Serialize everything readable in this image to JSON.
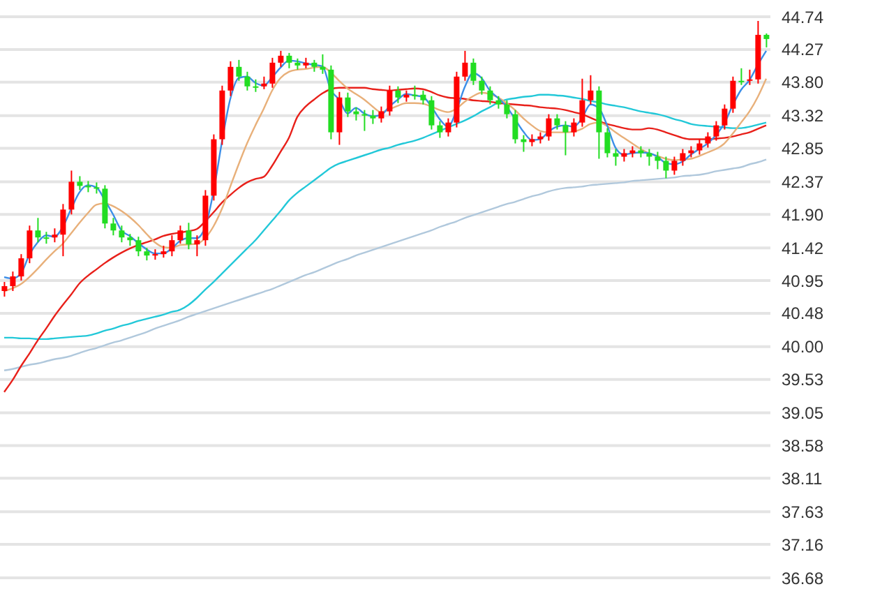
{
  "chart_data": {
    "type": "candlestick",
    "categories": [
      null,
      null,
      null,
      null,
      null,
      null,
      null,
      null,
      null,
      null,
      null,
      null,
      null,
      null,
      null,
      null,
      null,
      null,
      null,
      null,
      null,
      null,
      null,
      null,
      null,
      null,
      null,
      null,
      null,
      null,
      null,
      null,
      null,
      null,
      null,
      null,
      null,
      null,
      null,
      null,
      null,
      null,
      null,
      null,
      null,
      null,
      null,
      null,
      null,
      null,
      null,
      null,
      null,
      null,
      null,
      null,
      null,
      null,
      null,
      null,
      null,
      null,
      null,
      null,
      null,
      null,
      null,
      null,
      null,
      null,
      null,
      null,
      null,
      null,
      null,
      null,
      null,
      null,
      null,
      null,
      null,
      null,
      null,
      null,
      null,
      null,
      null,
      null,
      null,
      null,
      null,
      null
    ],
    "ohlc": [
      [
        40.8,
        40.93,
        40.72,
        40.87
      ],
      [
        40.87,
        41.08,
        40.8,
        41.01
      ],
      [
        41.01,
        41.33,
        40.95,
        41.27
      ],
      [
        41.27,
        41.74,
        41.2,
        41.67
      ],
      [
        41.67,
        41.85,
        41.5,
        41.57
      ],
      [
        41.57,
        41.65,
        41.48,
        41.57
      ],
      [
        41.57,
        41.7,
        41.5,
        41.61
      ],
      [
        41.61,
        42.05,
        41.3,
        41.97
      ],
      [
        41.97,
        42.53,
        41.9,
        42.37
      ],
      [
        42.37,
        42.45,
        42.25,
        42.31
      ],
      [
        42.31,
        42.38,
        42.22,
        42.29
      ],
      [
        42.29,
        42.36,
        42.2,
        42.27
      ],
      [
        42.27,
        42.32,
        41.7,
        41.77
      ],
      [
        41.77,
        41.85,
        41.6,
        41.67
      ],
      [
        41.67,
        41.74,
        41.5,
        41.57
      ],
      [
        41.57,
        41.62,
        41.45,
        41.53
      ],
      [
        41.53,
        41.58,
        41.3,
        41.37
      ],
      [
        41.37,
        41.42,
        41.24,
        41.31
      ],
      [
        41.31,
        41.4,
        41.25,
        41.33
      ],
      [
        41.33,
        41.45,
        41.28,
        41.37
      ],
      [
        41.37,
        41.6,
        41.3,
        41.53
      ],
      [
        41.53,
        41.74,
        41.48,
        41.67
      ],
      [
        41.67,
        41.78,
        41.4,
        41.47
      ],
      [
        41.47,
        41.6,
        41.3,
        41.53
      ],
      [
        41.53,
        42.25,
        41.45,
        42.17
      ],
      [
        42.17,
        43.05,
        42.1,
        42.98
      ],
      [
        42.98,
        43.75,
        42.9,
        43.68
      ],
      [
        43.68,
        44.1,
        43.6,
        44.02
      ],
      [
        44.02,
        44.12,
        43.82,
        43.88
      ],
      [
        43.88,
        43.95,
        43.68,
        43.74
      ],
      [
        43.74,
        43.84,
        43.66,
        43.74
      ],
      [
        43.74,
        43.88,
        43.7,
        43.78
      ],
      [
        43.78,
        44.15,
        43.72,
        44.08
      ],
      [
        44.08,
        44.25,
        44.02,
        44.18
      ],
      [
        44.18,
        44.22,
        44.0,
        44.08
      ],
      [
        44.08,
        44.14,
        43.98,
        44.04
      ],
      [
        44.04,
        44.15,
        44.0,
        44.08
      ],
      [
        44.08,
        44.12,
        43.95,
        44.02
      ],
      [
        44.02,
        44.2,
        43.92,
        43.98
      ],
      [
        43.98,
        44.04,
        42.98,
        43.08
      ],
      [
        43.08,
        43.66,
        42.9,
        43.58
      ],
      [
        43.58,
        43.65,
        43.3,
        43.38
      ],
      [
        43.38,
        43.44,
        43.25,
        43.34
      ],
      [
        43.34,
        43.4,
        43.1,
        43.32
      ],
      [
        43.32,
        43.4,
        43.2,
        43.28
      ],
      [
        43.28,
        43.45,
        43.22,
        43.38
      ],
      [
        43.38,
        43.75,
        43.32,
        43.68
      ],
      [
        43.68,
        43.74,
        43.5,
        43.58
      ],
      [
        43.58,
        43.68,
        43.52,
        43.62
      ],
      [
        43.62,
        43.75,
        43.55,
        43.62
      ],
      [
        43.62,
        43.68,
        43.48,
        43.54
      ],
      [
        43.54,
        43.6,
        43.12,
        43.18
      ],
      [
        43.18,
        43.24,
        43.0,
        43.08
      ],
      [
        43.08,
        43.28,
        43.02,
        43.22
      ],
      [
        43.22,
        43.95,
        43.15,
        43.88
      ],
      [
        43.88,
        44.25,
        43.82,
        44.08
      ],
      [
        44.08,
        44.14,
        43.76,
        43.82
      ],
      [
        43.82,
        43.88,
        43.62,
        43.68
      ],
      [
        43.68,
        43.74,
        43.48,
        43.54
      ],
      [
        43.54,
        43.6,
        43.42,
        43.48
      ],
      [
        43.48,
        43.54,
        43.28,
        43.34
      ],
      [
        43.34,
        43.4,
        42.92,
        42.98
      ],
      [
        42.98,
        43.04,
        42.8,
        42.94
      ],
      [
        42.94,
        43.05,
        42.88,
        42.98
      ],
      [
        42.98,
        43.08,
        42.92,
        43.02
      ],
      [
        43.02,
        43.34,
        42.96,
        43.28
      ],
      [
        43.28,
        43.34,
        43.12,
        43.18
      ],
      [
        43.18,
        43.24,
        42.75,
        43.08
      ],
      [
        43.08,
        43.28,
        43.02,
        43.22
      ],
      [
        43.22,
        43.85,
        43.16,
        43.54
      ],
      [
        43.54,
        43.9,
        43.48,
        43.68
      ],
      [
        43.68,
        43.74,
        42.7,
        43.08
      ],
      [
        43.08,
        43.14,
        42.72,
        42.78
      ],
      [
        42.78,
        42.84,
        42.6,
        42.73
      ],
      [
        42.73,
        42.84,
        42.66,
        42.78
      ],
      [
        42.78,
        42.88,
        42.72,
        42.82
      ],
      [
        42.82,
        42.88,
        42.72,
        42.78
      ],
      [
        42.78,
        42.84,
        42.6,
        42.73
      ],
      [
        42.73,
        42.8,
        42.55,
        42.67
      ],
      [
        42.67,
        42.73,
        42.42,
        42.53
      ],
      [
        42.53,
        42.73,
        42.47,
        42.67
      ],
      [
        42.67,
        42.84,
        42.6,
        42.78
      ],
      [
        42.78,
        42.88,
        42.72,
        42.82
      ],
      [
        42.82,
        42.98,
        42.76,
        42.92
      ],
      [
        42.92,
        43.08,
        42.86,
        43.02
      ],
      [
        43.02,
        43.24,
        42.96,
        43.18
      ],
      [
        43.18,
        43.48,
        43.12,
        43.42
      ],
      [
        43.42,
        43.88,
        43.36,
        43.82
      ],
      [
        43.82,
        44.0,
        43.76,
        43.82
      ],
      [
        43.82,
        43.98,
        43.76,
        43.84
      ],
      [
        43.84,
        44.68,
        43.78,
        44.48
      ],
      [
        44.48,
        44.5,
        44.3,
        44.42
      ]
    ],
    "colors": [
      "#ff0000",
      "#ff0000",
      "#ff0000",
      "#ff0000",
      "#22dd22",
      "#22dd22",
      "#ff0000",
      "#ff0000",
      "#ff0000",
      "#22dd22",
      "#22dd22",
      "#22dd22",
      "#22dd22",
      "#22dd22",
      "#22dd22",
      "#22dd22",
      "#22dd22",
      "#22dd22",
      "#ff0000",
      "#ff0000",
      "#ff0000",
      "#ff0000",
      "#22dd22",
      "#ff0000",
      "#ff0000",
      "#ff0000",
      "#ff0000",
      "#ff0000",
      "#22dd22",
      "#22dd22",
      "#22dd22",
      "#ff0000",
      "#ff0000",
      "#ff0000",
      "#22dd22",
      "#22dd22",
      "#ff0000",
      "#22dd22",
      "#22dd22",
      "#22dd22",
      "#ff0000",
      "#22dd22",
      "#22dd22",
      "#22dd22",
      "#22dd22",
      "#ff0000",
      "#ff0000",
      "#22dd22",
      "#ff0000",
      "#22dd22",
      "#22dd22",
      "#22dd22",
      "#22dd22",
      "#ff0000",
      "#ff0000",
      "#ff0000",
      "#22dd22",
      "#22dd22",
      "#22dd22",
      "#22dd22",
      "#22dd22",
      "#22dd22",
      "#22dd22",
      "#ff0000",
      "#ff0000",
      "#ff0000",
      "#22dd22",
      "#22dd22",
      "#ff0000",
      "#ff0000",
      "#ff0000",
      "#22dd22",
      "#22dd22",
      "#22dd22",
      "#ff0000",
      "#ff0000",
      "#22dd22",
      "#22dd22",
      "#22dd22",
      "#22dd22",
      "#ff0000",
      "#ff0000",
      "#ff0000",
      "#ff0000",
      "#ff0000",
      "#ff0000",
      "#ff0000",
      "#ff0000",
      "#22dd22",
      "#ff0000",
      "#ff0000",
      "#22dd22"
    ],
    "series": [
      {
        "type": "line",
        "color": "#b0c8dc",
        "values": [
          39.66,
          39.68,
          39.71,
          39.74,
          39.76,
          39.79,
          39.82,
          39.84,
          39.87,
          39.91,
          39.95,
          39.98,
          40.02,
          40.06,
          40.09,
          40.13,
          40.17,
          40.21,
          40.26,
          40.3,
          40.34,
          40.38,
          40.43,
          40.47,
          40.51,
          40.55,
          40.59,
          40.63,
          40.67,
          40.71,
          40.75,
          40.79,
          40.83,
          40.88,
          40.93,
          40.98,
          41.03,
          41.07,
          41.12,
          41.17,
          41.22,
          41.26,
          41.31,
          41.35,
          41.39,
          41.43,
          41.47,
          41.51,
          41.55,
          41.59,
          41.63,
          41.67,
          41.72,
          41.76,
          41.8,
          41.85,
          41.89,
          41.93,
          41.97,
          42.01,
          42.05,
          42.08,
          42.12,
          42.16,
          42.19,
          42.23,
          42.26,
          42.28,
          42.29,
          42.3,
          42.32,
          42.33,
          42.34,
          42.35,
          42.36,
          42.38,
          42.39,
          42.4,
          42.41,
          42.42,
          42.43,
          42.45,
          42.46,
          42.47,
          42.49,
          42.52,
          42.54,
          42.56,
          42.58,
          42.62,
          42.65,
          42.69
        ]
      },
      {
        "type": "line",
        "color": "#22c8d8",
        "values": [
          40.13,
          40.13,
          40.12,
          40.12,
          40.11,
          40.11,
          40.12,
          40.13,
          40.14,
          40.15,
          40.16,
          40.19,
          40.23,
          40.26,
          40.3,
          40.33,
          40.37,
          40.4,
          40.43,
          40.46,
          40.5,
          40.53,
          40.6,
          40.7,
          40.82,
          40.93,
          41.05,
          41.17,
          41.29,
          41.41,
          41.53,
          41.67,
          41.81,
          41.95,
          42.1,
          42.21,
          42.3,
          42.39,
          42.48,
          42.57,
          42.63,
          42.67,
          42.71,
          42.75,
          42.79,
          42.83,
          42.86,
          42.9,
          42.93,
          42.96,
          43.0,
          43.05,
          43.1,
          43.15,
          43.2,
          43.25,
          43.31,
          43.38,
          43.44,
          43.51,
          43.55,
          43.57,
          43.59,
          43.6,
          43.62,
          43.62,
          43.61,
          43.6,
          43.58,
          43.56,
          43.53,
          43.51,
          43.48,
          43.46,
          43.44,
          43.41,
          43.38,
          43.36,
          43.34,
          43.31,
          43.27,
          43.24,
          43.2,
          43.18,
          43.17,
          43.16,
          43.15,
          43.14,
          43.14,
          43.16,
          43.19,
          43.22
        ]
      },
      {
        "type": "line",
        "color": "#e8201a",
        "values": [
          39.35,
          39.52,
          39.72,
          39.9,
          40.09,
          40.26,
          40.44,
          40.6,
          40.75,
          40.91,
          41.02,
          41.11,
          41.2,
          41.28,
          41.35,
          41.41,
          41.46,
          41.5,
          41.54,
          41.59,
          41.62,
          41.64,
          41.66,
          41.69,
          41.8,
          41.93,
          42.07,
          42.18,
          42.28,
          42.36,
          42.41,
          42.44,
          42.6,
          42.8,
          43.0,
          43.3,
          43.45,
          43.55,
          43.64,
          43.7,
          43.72,
          43.72,
          43.72,
          43.72,
          43.7,
          43.69,
          43.68,
          43.69,
          43.7,
          43.71,
          43.7,
          43.66,
          43.61,
          43.58,
          43.57,
          43.56,
          43.54,
          43.53,
          43.52,
          43.5,
          43.49,
          43.48,
          43.47,
          43.46,
          43.44,
          43.43,
          43.42,
          43.4,
          43.37,
          43.34,
          43.29,
          43.24,
          43.2,
          43.17,
          43.14,
          43.12,
          43.12,
          43.14,
          43.12,
          43.08,
          43.04,
          43.0,
          42.98,
          42.98,
          42.98,
          42.99,
          43.0,
          43.02,
          43.05,
          43.08,
          43.13,
          43.18
        ]
      },
      {
        "type": "line",
        "color": "#e8b07a",
        "values": [
          40.8,
          40.84,
          40.9,
          41.0,
          41.12,
          41.25,
          41.37,
          41.48,
          41.63,
          41.78,
          41.92,
          42.04,
          42.06,
          42.02,
          41.95,
          41.86,
          41.75,
          41.62,
          41.5,
          41.43,
          41.42,
          41.46,
          41.47,
          41.48,
          41.56,
          41.73,
          41.98,
          42.3,
          42.62,
          42.92,
          43.18,
          43.42,
          43.68,
          43.86,
          43.95,
          43.98,
          43.99,
          44.01,
          44.02,
          43.94,
          43.82,
          43.71,
          43.63,
          43.55,
          43.45,
          43.37,
          43.41,
          43.46,
          43.5,
          43.5,
          43.49,
          43.45,
          43.4,
          43.37,
          43.42,
          43.52,
          43.6,
          43.65,
          43.63,
          43.58,
          43.5,
          43.4,
          43.28,
          43.18,
          43.1,
          43.08,
          43.08,
          43.08,
          43.09,
          43.13,
          43.2,
          43.22,
          43.17,
          43.08,
          43.0,
          42.92,
          42.84,
          42.78,
          42.74,
          42.7,
          42.68,
          42.69,
          42.7,
          42.74,
          42.79,
          42.84,
          42.92,
          43.06,
          43.22,
          43.38,
          43.59,
          43.85
        ]
      },
      {
        "type": "line",
        "color": "#3b8ee8",
        "values": [
          41.0,
          40.98,
          41.05,
          41.32,
          41.5,
          41.6,
          41.58,
          41.72,
          41.98,
          42.22,
          42.32,
          42.29,
          42.11,
          41.9,
          41.67,
          41.59,
          41.49,
          41.4,
          41.34,
          41.34,
          41.41,
          41.52,
          41.56,
          41.56,
          41.72,
          42.23,
          42.94,
          43.56,
          43.86,
          43.88,
          43.79,
          43.75,
          43.87,
          44.01,
          44.11,
          44.1,
          44.07,
          44.05,
          44.03,
          43.69,
          43.55,
          43.35,
          43.43,
          43.35,
          43.31,
          43.33,
          43.45,
          43.55,
          43.63,
          43.61,
          43.59,
          43.45,
          43.27,
          43.16,
          43.39,
          43.73,
          43.93,
          43.86,
          43.68,
          43.57,
          43.45,
          43.27,
          43.09,
          42.97,
          42.98,
          43.09,
          43.16,
          43.18,
          43.16,
          43.28,
          43.48,
          43.43,
          43.18,
          42.86,
          42.76,
          42.78,
          42.79,
          42.78,
          42.73,
          42.64,
          42.62,
          42.66,
          42.76,
          42.84,
          42.92,
          43.04,
          43.21,
          43.47,
          43.69,
          43.83,
          44.05,
          44.25
        ]
      }
    ],
    "ylim": [
      36.68,
      44.74
    ],
    "yticks": [
      44.74,
      44.27,
      {
        "value": 43.8,
        "label": "43.80"
      },
      43.32,
      42.85,
      42.37,
      {
        "value": 41.9,
        "label": "41.90"
      },
      41.42,
      40.95,
      40.48,
      {
        "value": 40,
        "label": "40.00"
      },
      39.53,
      39.05,
      38.58,
      38.11,
      37.63,
      37.16,
      36.68
    ],
    "grid": "y",
    "tick_labels": "y"
  }
}
